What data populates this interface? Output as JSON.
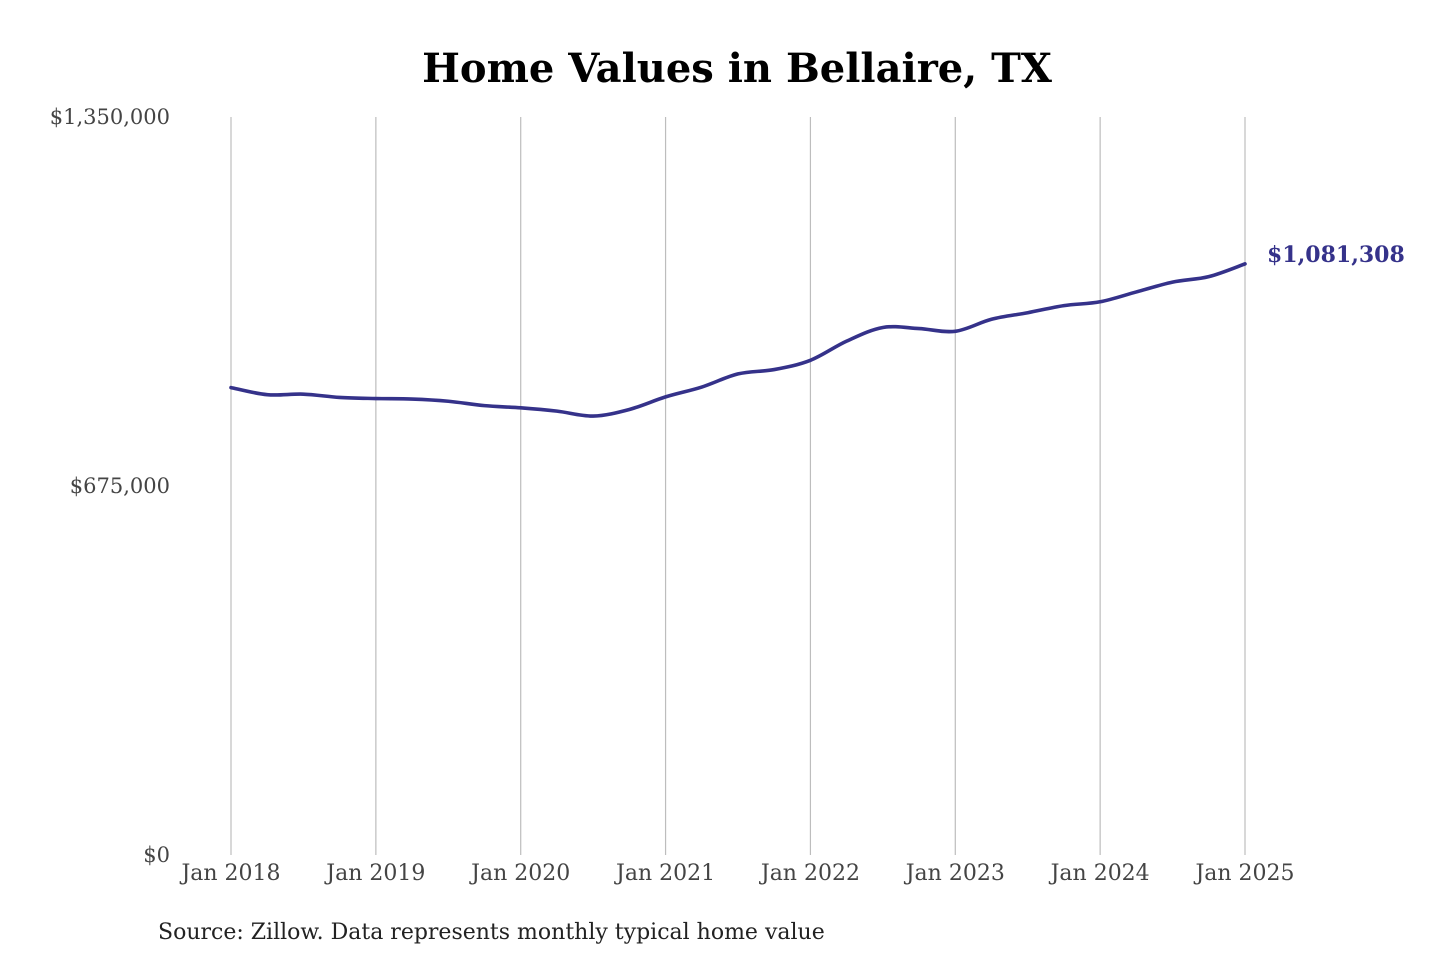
{
  "chart_data": {
    "type": "line",
    "title": "Home Values in Bellaire, TX",
    "source": "Source: Zillow. Data represents monthly typical home value",
    "ylim": [
      0,
      1350000
    ],
    "yticks": [
      {
        "value": 0,
        "label": "$0"
      },
      {
        "value": 675000,
        "label": "$675,000"
      },
      {
        "value": 1350000,
        "label": "$1,350,000"
      }
    ],
    "xlim": [
      2018,
      2025
    ],
    "xticks": [
      {
        "value": 2018,
        "label": "Jan 2018"
      },
      {
        "value": 2019,
        "label": "Jan 2019"
      },
      {
        "value": 2020,
        "label": "Jan 2020"
      },
      {
        "value": 2021,
        "label": "Jan 2021"
      },
      {
        "value": 2022,
        "label": "Jan 2022"
      },
      {
        "value": 2023,
        "label": "Jan 2023"
      },
      {
        "value": 2024,
        "label": "Jan 2024"
      },
      {
        "value": 2025,
        "label": "Jan 2025"
      }
    ],
    "grid": {
      "vertical": true,
      "horizontal": false
    },
    "series": [
      {
        "color": "#35328a",
        "end_label": "$1,081,308",
        "points": [
          {
            "x": 2018.0,
            "y": 855000
          },
          {
            "x": 2018.25,
            "y": 842000
          },
          {
            "x": 2018.5,
            "y": 843000
          },
          {
            "x": 2018.75,
            "y": 837000
          },
          {
            "x": 2019.0,
            "y": 835000
          },
          {
            "x": 2019.25,
            "y": 834000
          },
          {
            "x": 2019.5,
            "y": 830000
          },
          {
            "x": 2019.75,
            "y": 822000
          },
          {
            "x": 2020.0,
            "y": 818000
          },
          {
            "x": 2020.25,
            "y": 812000
          },
          {
            "x": 2020.5,
            "y": 803000
          },
          {
            "x": 2020.75,
            "y": 815000
          },
          {
            "x": 2021.0,
            "y": 838000
          },
          {
            "x": 2021.25,
            "y": 856000
          },
          {
            "x": 2021.5,
            "y": 880000
          },
          {
            "x": 2021.75,
            "y": 888000
          },
          {
            "x": 2022.0,
            "y": 905000
          },
          {
            "x": 2022.25,
            "y": 940000
          },
          {
            "x": 2022.5,
            "y": 965000
          },
          {
            "x": 2022.75,
            "y": 963000
          },
          {
            "x": 2023.0,
            "y": 958000
          },
          {
            "x": 2023.25,
            "y": 980000
          },
          {
            "x": 2023.5,
            "y": 992000
          },
          {
            "x": 2023.75,
            "y": 1005000
          },
          {
            "x": 2024.0,
            "y": 1012000
          },
          {
            "x": 2024.25,
            "y": 1030000
          },
          {
            "x": 2024.5,
            "y": 1048000
          },
          {
            "x": 2024.75,
            "y": 1058000
          },
          {
            "x": 2025.0,
            "y": 1081308
          }
        ]
      }
    ]
  }
}
